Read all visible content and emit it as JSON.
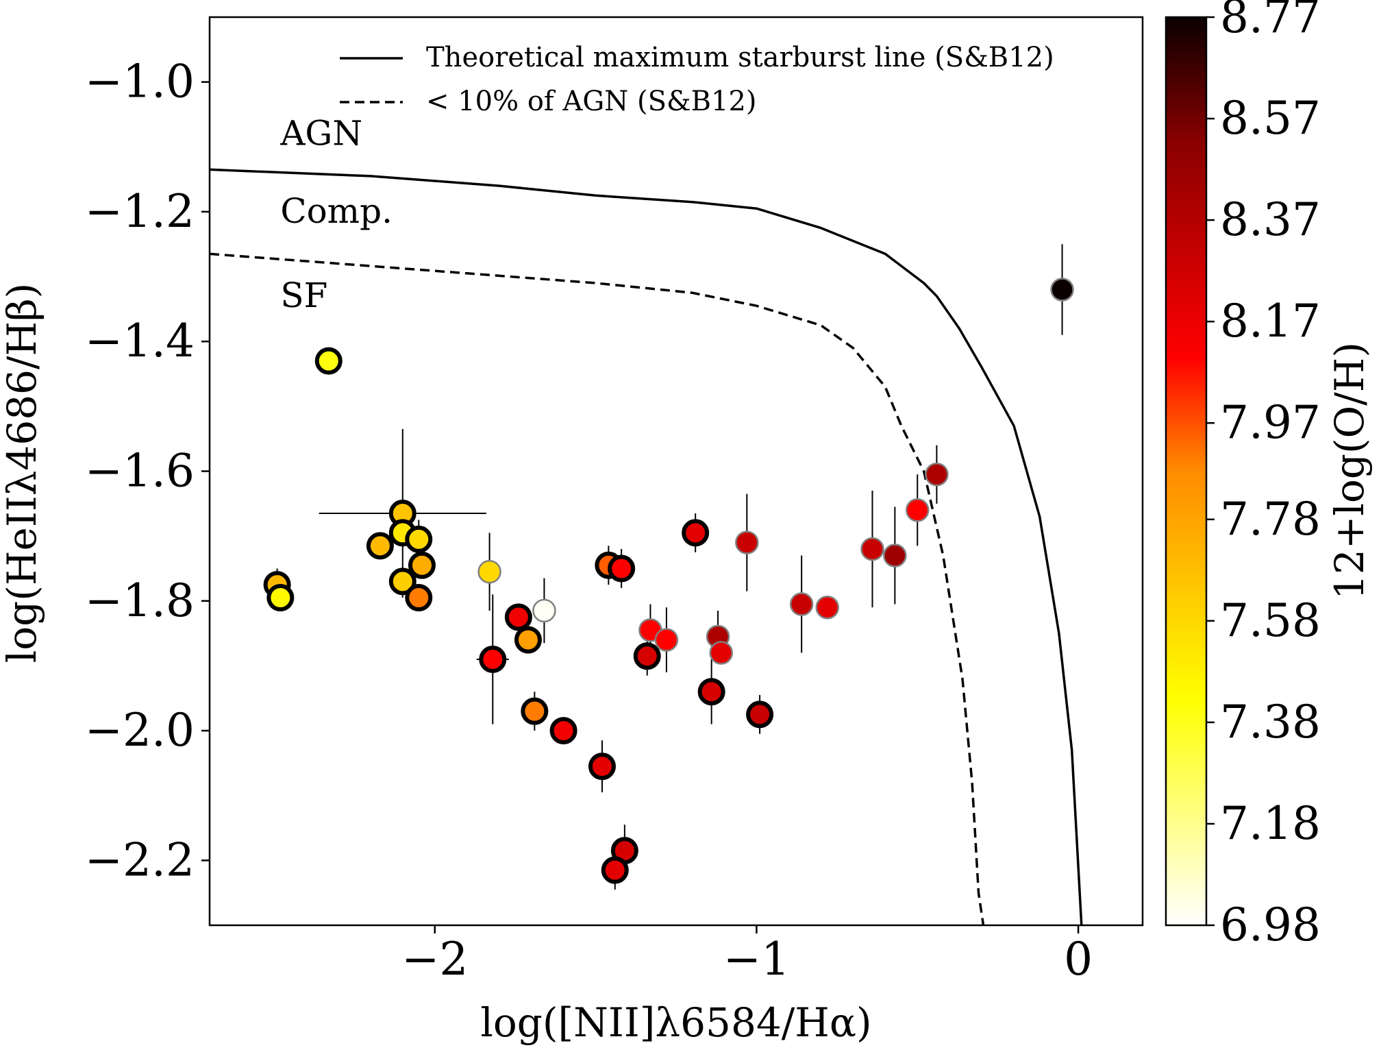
{
  "chart_data": {
    "type": "scatter",
    "xlabel": "log([NII]λ6584/Hα)",
    "ylabel": "log(HeIIλ4686/Hβ)",
    "xlim": [
      -2.7,
      0.2
    ],
    "ylim": [
      -2.3,
      -0.9
    ],
    "xticks": [
      -2,
      -1,
      0
    ],
    "xtick_labels": [
      "−2",
      "−1",
      "0"
    ],
    "yticks": [
      -1.0,
      -1.2,
      -1.4,
      -1.6,
      -1.8,
      -2.0,
      -2.2
    ],
    "ytick_labels": [
      "−1.0",
      "−1.2",
      "−1.4",
      "−1.6",
      "−1.8",
      "−2.0",
      "−2.2"
    ],
    "grid": false,
    "region_labels": [
      {
        "text": "AGN",
        "x": -2.48,
        "y": -1.08
      },
      {
        "text": "Comp.",
        "x": -2.48,
        "y": -1.2
      },
      {
        "text": "SF",
        "x": -2.48,
        "y": -1.33
      }
    ],
    "legend": {
      "placement": "top-center",
      "entries": [
        {
          "label": "Theoretical maximum starburst line (S&B12)",
          "style": "solid"
        },
        {
          "label": "< 10% of AGN (S&B12)",
          "style": "dashed"
        }
      ]
    },
    "lines": [
      {
        "name": "Theoretical maximum starburst line (S&B12)",
        "style": "solid",
        "x": [
          -2.7,
          -2.2,
          -1.8,
          -1.5,
          -1.2,
          -1.0,
          -0.8,
          -0.6,
          -0.48,
          -0.44,
          -0.37,
          -0.3,
          -0.2,
          -0.12,
          -0.06,
          -0.02,
          0.01
        ],
        "y": [
          -1.135,
          -1.145,
          -1.16,
          -1.175,
          -1.185,
          -1.195,
          -1.225,
          -1.265,
          -1.31,
          -1.33,
          -1.38,
          -1.44,
          -1.53,
          -1.67,
          -1.85,
          -2.03,
          -2.3
        ]
      },
      {
        "name": "< 10% of AGN (S&B12)",
        "style": "dashed",
        "x": [
          -2.7,
          -2.3,
          -1.9,
          -1.5,
          -1.2,
          -1.0,
          -0.8,
          -0.7,
          -0.6,
          -0.55,
          -0.48,
          -0.42,
          -0.36,
          -0.33,
          -0.31,
          -0.295
        ],
        "y": [
          -1.265,
          -1.28,
          -1.295,
          -1.31,
          -1.325,
          -1.345,
          -1.375,
          -1.41,
          -1.47,
          -1.53,
          -1.6,
          -1.73,
          -1.92,
          -2.08,
          -2.25,
          -2.3
        ]
      }
    ],
    "colorbar": {
      "label": "12+log(O/H)",
      "min": 6.98,
      "max": 8.77,
      "ticks": [
        6.98,
        7.18,
        7.38,
        7.58,
        7.78,
        7.97,
        8.17,
        8.37,
        8.57,
        8.77
      ],
      "tick_labels": [
        "6.98",
        "7.18",
        "7.38",
        "7.58",
        "7.78",
        "7.97",
        "8.17",
        "8.37",
        "8.57",
        "8.77"
      ],
      "colormap": "hot_r"
    },
    "points": [
      {
        "x": -0.05,
        "y": -1.32,
        "z": 8.77,
        "yerr": 0.07,
        "edge": "grey"
      },
      {
        "x": -2.33,
        "y": -1.43,
        "z": 7.4,
        "edge": "black"
      },
      {
        "x": -2.49,
        "y": -1.775,
        "z": 7.7,
        "yerr": 0.025,
        "edge": "black"
      },
      {
        "x": -2.48,
        "y": -1.795,
        "z": 7.45,
        "edge": "black"
      },
      {
        "x": -2.1,
        "y": -1.665,
        "z": 7.66,
        "xerr": 0.26,
        "yerr": 0.13,
        "edge": "black"
      },
      {
        "x": -2.17,
        "y": -1.715,
        "z": 7.7,
        "edge": "black"
      },
      {
        "x": -2.1,
        "y": -1.695,
        "z": 7.52,
        "edge": "black"
      },
      {
        "x": -2.05,
        "y": -1.705,
        "z": 7.58,
        "yerr": 0.03,
        "edge": "black"
      },
      {
        "x": -2.04,
        "y": -1.745,
        "z": 7.75,
        "edge": "black"
      },
      {
        "x": -2.1,
        "y": -1.77,
        "z": 7.62,
        "edge": "black"
      },
      {
        "x": -2.05,
        "y": -1.795,
        "z": 7.9,
        "edge": "black"
      },
      {
        "x": -1.83,
        "y": -1.755,
        "z": 7.58,
        "yerr": 0.06,
        "edge": "grey"
      },
      {
        "x": -1.82,
        "y": -1.89,
        "z": 8.1,
        "xerr": 0.05,
        "yerr": 0.1,
        "edge": "black"
      },
      {
        "x": -1.74,
        "y": -1.825,
        "z": 8.15,
        "edge": "black"
      },
      {
        "x": -1.71,
        "y": -1.86,
        "z": 7.8,
        "yerr": 0.02,
        "edge": "black"
      },
      {
        "x": -1.66,
        "y": -1.815,
        "z": 7.0,
        "yerr": 0.05,
        "edge": "grey"
      },
      {
        "x": -1.69,
        "y": -1.97,
        "z": 7.9,
        "yerr": 0.03,
        "edge": "black"
      },
      {
        "x": -1.6,
        "y": -2.0,
        "z": 8.15,
        "edge": "black"
      },
      {
        "x": -1.48,
        "y": -2.055,
        "z": 8.2,
        "yerr": 0.04,
        "edge": "black"
      },
      {
        "x": -1.46,
        "y": -1.745,
        "z": 7.95,
        "yerr": 0.03,
        "edge": "black"
      },
      {
        "x": -1.42,
        "y": -1.75,
        "z": 8.1,
        "yerr": 0.03,
        "edge": "black"
      },
      {
        "x": -1.41,
        "y": -2.185,
        "z": 8.25,
        "yerr": 0.04,
        "edge": "black"
      },
      {
        "x": -1.44,
        "y": -2.215,
        "z": 8.2,
        "yerr": 0.03,
        "edge": "black"
      },
      {
        "x": -1.34,
        "y": -1.885,
        "z": 8.25,
        "yerr": 0.03,
        "edge": "black"
      },
      {
        "x": -1.33,
        "y": -1.845,
        "z": 8.1,
        "yerr": 0.04,
        "edge": "grey"
      },
      {
        "x": -1.28,
        "y": -1.86,
        "z": 8.1,
        "yerr": 0.05,
        "edge": "grey"
      },
      {
        "x": -1.19,
        "y": -1.695,
        "z": 8.2,
        "yerr": 0.03,
        "edge": "black"
      },
      {
        "x": -1.14,
        "y": -1.94,
        "z": 8.25,
        "yerr": 0.05,
        "edge": "black"
      },
      {
        "x": -1.12,
        "y": -1.855,
        "z": 8.4,
        "yerr": 0.04,
        "edge": "grey"
      },
      {
        "x": -1.11,
        "y": -1.88,
        "z": 8.2,
        "edge": "grey"
      },
      {
        "x": -1.03,
        "y": -1.71,
        "z": 8.3,
        "yerr": 0.075,
        "edge": "grey"
      },
      {
        "x": -0.99,
        "y": -1.975,
        "z": 8.3,
        "yerr": 0.03,
        "edge": "black"
      },
      {
        "x": -0.86,
        "y": -1.805,
        "z": 8.3,
        "yerr": 0.075,
        "edge": "grey"
      },
      {
        "x": -0.78,
        "y": -1.81,
        "z": 8.2,
        "edge": "grey"
      },
      {
        "x": -0.64,
        "y": -1.72,
        "z": 8.3,
        "yerr": 0.09,
        "edge": "grey"
      },
      {
        "x": -0.57,
        "y": -1.73,
        "z": 8.45,
        "yerr": 0.075,
        "edge": "grey"
      },
      {
        "x": -0.5,
        "y": -1.66,
        "z": 8.1,
        "yerr": 0.055,
        "edge": "grey"
      },
      {
        "x": -0.44,
        "y": -1.605,
        "z": 8.4,
        "yerr": 0.045,
        "edge": "grey"
      }
    ]
  }
}
